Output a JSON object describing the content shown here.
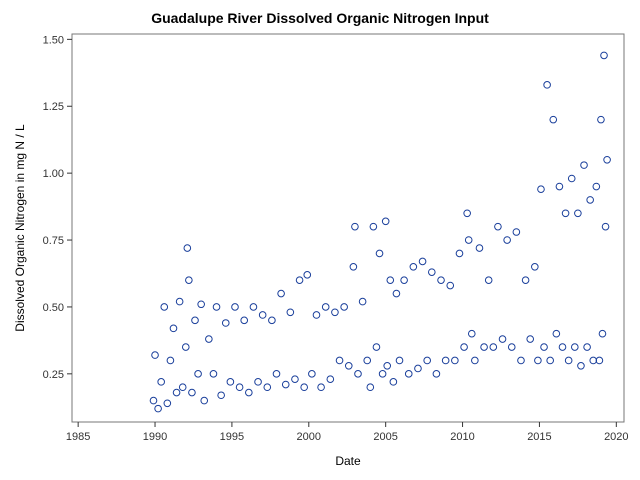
{
  "chart_data": {
    "type": "scatter",
    "title": "Guadalupe River Dissolved Organic Nitrogen Input",
    "xlabel": "Date",
    "ylabel": "Dissolved Organic Nitrogen in mg N / L",
    "xlim": [
      1984.6,
      2020.5
    ],
    "ylim": [
      0.07,
      1.52
    ],
    "x_ticks": [
      1985,
      1990,
      1995,
      2000,
      2005,
      2010,
      2015,
      2020
    ],
    "x_tick_labels": [
      "1985",
      "1990",
      "1995",
      "2000",
      "2005",
      "2010",
      "2015",
      "2020"
    ],
    "y_ticks": [
      0.25,
      0.5,
      0.75,
      1.0,
      1.25,
      1.5
    ],
    "y_tick_labels": [
      "0.25",
      "0.50",
      "0.75",
      "1.00",
      "1.25",
      "1.50"
    ],
    "grid": false,
    "legend": "none",
    "marker": "open-circle",
    "marker_color": "#1a3f9b",
    "series": [
      {
        "x": [
          1989.9,
          1990.0,
          1990.2,
          1990.4,
          1990.6,
          1990.8,
          1991.0,
          1991.2,
          1991.4,
          1991.6,
          1991.8,
          1992.0,
          1992.1,
          1992.2,
          1992.4,
          1992.6,
          1992.8,
          1993.0,
          1993.2,
          1993.5,
          1993.8,
          1994.0,
          1994.3,
          1994.6,
          1994.9,
          1995.2,
          1995.5,
          1995.8,
          1996.1,
          1996.4,
          1996.7,
          1997.0,
          1997.3,
          1997.6,
          1997.9,
          1998.2,
          1998.5,
          1998.8,
          1999.1,
          1999.4,
          1999.7,
          1999.9,
          2000.2,
          2000.5,
          2000.8,
          2001.1,
          2001.4,
          2001.7,
          2002.0,
          2002.3,
          2002.6,
          2002.9,
          2003.0,
          2003.2,
          2003.5,
          2003.8,
          2004.0,
          2004.2,
          2004.4,
          2004.6,
          2004.8,
          2005.0,
          2005.1,
          2005.3,
          2005.5,
          2005.7,
          2005.9,
          2006.2,
          2006.5,
          2006.8,
          2007.1,
          2007.4,
          2007.7,
          2008.0,
          2008.3,
          2008.6,
          2008.9,
          2009.2,
          2009.5,
          2009.8,
          2010.1,
          2010.3,
          2010.4,
          2010.6,
          2010.8,
          2011.1,
          2011.4,
          2011.7,
          2012.0,
          2012.3,
          2012.6,
          2012.9,
          2013.2,
          2013.5,
          2013.8,
          2014.1,
          2014.4,
          2014.7,
          2014.9,
          2015.1,
          2015.3,
          2015.5,
          2015.7,
          2015.9,
          2016.1,
          2016.3,
          2016.5,
          2016.7,
          2016.9,
          2017.1,
          2017.3,
          2017.5,
          2017.7,
          2017.9,
          2018.1,
          2018.3,
          2018.5,
          2018.7,
          2018.9,
          2019.0,
          2019.1,
          2019.2,
          2019.3,
          2019.4
        ],
        "y": [
          0.15,
          0.32,
          0.12,
          0.22,
          0.5,
          0.14,
          0.3,
          0.42,
          0.18,
          0.52,
          0.2,
          0.35,
          0.72,
          0.6,
          0.18,
          0.45,
          0.25,
          0.51,
          0.15,
          0.38,
          0.25,
          0.5,
          0.17,
          0.44,
          0.22,
          0.5,
          0.2,
          0.45,
          0.18,
          0.5,
          0.22,
          0.47,
          0.2,
          0.45,
          0.25,
          0.55,
          0.21,
          0.48,
          0.23,
          0.6,
          0.2,
          0.62,
          0.25,
          0.47,
          0.2,
          0.5,
          0.23,
          0.48,
          0.3,
          0.5,
          0.28,
          0.65,
          0.8,
          0.25,
          0.52,
          0.3,
          0.2,
          0.8,
          0.35,
          0.7,
          0.25,
          0.82,
          0.28,
          0.6,
          0.22,
          0.55,
          0.3,
          0.6,
          0.25,
          0.65,
          0.27,
          0.67,
          0.3,
          0.63,
          0.25,
          0.6,
          0.3,
          0.58,
          0.3,
          0.7,
          0.35,
          0.85,
          0.75,
          0.4,
          0.3,
          0.72,
          0.35,
          0.6,
          0.35,
          0.8,
          0.38,
          0.75,
          0.35,
          0.78,
          0.3,
          0.6,
          0.38,
          0.65,
          0.3,
          0.94,
          0.35,
          1.33,
          0.3,
          1.2,
          0.4,
          0.95,
          0.35,
          0.85,
          0.3,
          0.98,
          0.35,
          0.85,
          0.28,
          1.03,
          0.35,
          0.9,
          0.3,
          0.95,
          0.3,
          1.2,
          0.4,
          1.44,
          0.8,
          1.05
        ]
      }
    ]
  }
}
